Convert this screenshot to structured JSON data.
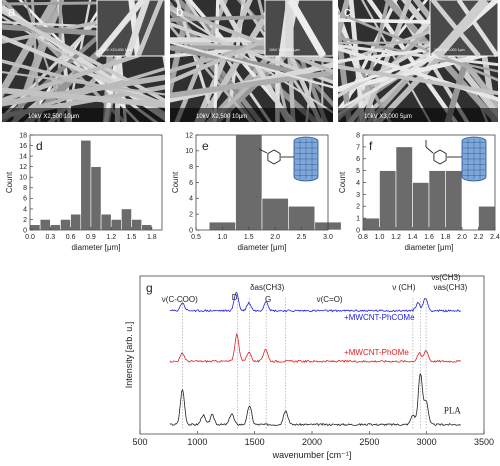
{
  "sem_panels": [
    {
      "letter": "a",
      "info": "10kV   X2,500   10μm",
      "inset_info": "10kV  X10,000  1μm"
    },
    {
      "letter": "b",
      "info": "10kV   X2,500   10μm",
      "inset_info": "10kV  X10,000  1μm"
    },
    {
      "letter": "c",
      "info": "10kV   X3,000   5μm",
      "inset_info": "10kV  X10,000  1μm"
    }
  ],
  "chart_data": [
    {
      "type": "bar",
      "panel": "d",
      "xlabel": "diameter [μm]",
      "ylabel": "Count",
      "xlim": [
        0.0,
        1.95
      ],
      "ylim": [
        0,
        18
      ],
      "xticks": [
        "0.0",
        "0.3",
        "0.6",
        "0.9",
        "1.2",
        "1.5",
        "1.8"
      ],
      "xtick_values": [
        0.0,
        0.3,
        0.6,
        0.9,
        1.2,
        1.5,
        1.8
      ],
      "yticks": [
        "0",
        "2",
        "4",
        "6",
        "8",
        "10",
        "12",
        "14",
        "16",
        "18"
      ],
      "ytick_values": [
        0,
        2,
        4,
        6,
        8,
        10,
        12,
        14,
        16,
        18
      ],
      "bin_width": 0.15,
      "bin_starts": [
        0.0,
        0.15,
        0.3,
        0.45,
        0.6,
        0.75,
        0.9,
        1.05,
        1.2,
        1.35,
        1.5,
        1.65,
        1.8
      ],
      "values": [
        1,
        2,
        1,
        2,
        3,
        17,
        12,
        3,
        2,
        4,
        2,
        1,
        0
      ],
      "bar_color": "#6b6b6b"
    },
    {
      "type": "bar",
      "panel": "e",
      "xlabel": "diameter [μm]",
      "ylabel": "Count",
      "xlim": [
        0.5,
        3.0
      ],
      "ylim": [
        0,
        12
      ],
      "xticks": [
        "0.5",
        "1.0",
        "1.5",
        "2.0",
        "2.5",
        "3.0"
      ],
      "xtick_values": [
        0.5,
        1.0,
        1.5,
        2.0,
        2.5,
        3.0
      ],
      "yticks": [
        "0",
        "2",
        "4",
        "6",
        "8",
        "10",
        "12"
      ],
      "ytick_values": [
        0,
        2,
        4,
        6,
        8,
        10,
        12
      ],
      "bin_starts": [
        0.75,
        1.25,
        1.75,
        2.25,
        2.75
      ],
      "bin_width": 0.5,
      "values": [
        1,
        12,
        4,
        3,
        1
      ],
      "bar_color": "#6b6b6b"
    },
    {
      "type": "bar",
      "panel": "f",
      "xlabel": "diameter [μm]",
      "ylabel": "Count",
      "xlim": [
        0.8,
        2.4
      ],
      "ylim": [
        0,
        8
      ],
      "xticks": [
        "0.8",
        "1.0",
        "1.2",
        "1.4",
        "1.6",
        "1.8",
        "2.0",
        "2.2",
        "2.4"
      ],
      "xtick_values": [
        0.8,
        1.0,
        1.2,
        1.4,
        1.6,
        1.8,
        2.0,
        2.2,
        2.4
      ],
      "yticks": [
        "0",
        "1",
        "2",
        "3",
        "4",
        "5",
        "6",
        "7",
        "8"
      ],
      "ytick_values": [
        0,
        1,
        2,
        3,
        4,
        5,
        6,
        7,
        8
      ],
      "bin_starts": [
        0.8,
        1.0,
        1.2,
        1.4,
        1.6,
        1.8,
        2.0,
        2.2
      ],
      "bin_width": 0.2,
      "values": [
        1,
        5,
        7,
        4,
        5,
        5,
        0,
        2
      ],
      "bar_color": "#6b6b6b"
    },
    {
      "type": "line",
      "panel": "g",
      "xlabel": "wavenumber [cm⁻¹]",
      "ylabel": "Intensity [arb. u.]",
      "xlim": [
        500,
        3500
      ],
      "xticks": [
        "500",
        "1000",
        "1500",
        "2000",
        "2500",
        "3000",
        "3500"
      ],
      "xtick_values": [
        500,
        1000,
        1500,
        2000,
        2500,
        3000,
        3500
      ],
      "series": [
        {
          "name": "+MWCNT-PhCOMe",
          "color": "#2020e0",
          "offset": 0.78,
          "peaks": [
            [
              870,
              0.05
            ],
            [
              1340,
              0.12
            ],
            [
              1450,
              0.05
            ],
            [
              1600,
              0.06
            ],
            [
              2925,
              0.05
            ],
            [
              2990,
              0.08
            ]
          ]
        },
        {
          "name": "+MWCNT-PhOMe",
          "color": "#e02020",
          "offset": 0.46,
          "peaks": [
            [
              870,
              0.05
            ],
            [
              1345,
              0.17
            ],
            [
              1450,
              0.06
            ],
            [
              1595,
              0.08
            ],
            [
              2935,
              0.05
            ],
            [
              2995,
              0.07
            ]
          ]
        },
        {
          "name": "PLA",
          "color": "#222222",
          "offset": 0.06,
          "peaks": [
            [
              870,
              0.22
            ],
            [
              1050,
              0.06
            ],
            [
              1130,
              0.06
            ],
            [
              1300,
              0.07
            ],
            [
              1455,
              0.12
            ],
            [
              1770,
              0.09
            ],
            [
              2880,
              0.06
            ],
            [
              2945,
              0.32
            ],
            [
              2995,
              0.15
            ]
          ]
        }
      ],
      "peak_lines": [
        870,
        1350,
        1455,
        1600,
        1770,
        2880,
        2945,
        2995
      ],
      "annotations": [
        {
          "text": "ν(C-COO)"
        },
        {
          "text": "D"
        },
        {
          "text": "δas(CH3)"
        },
        {
          "text": "G"
        },
        {
          "text": "ν(C=O)"
        },
        {
          "text": "ν (CH)"
        },
        {
          "text": "νs(CH3)"
        },
        {
          "text": "νas(CH3)"
        }
      ]
    }
  ],
  "labels": {
    "g_letter": "g",
    "d_letter": "d",
    "e_letter": "e",
    "f_letter": "f",
    "pla": "PLA"
  },
  "colors": {
    "bar": "#6b6b6b",
    "blue": "#2020e0",
    "red": "#e02020",
    "black": "#222222"
  }
}
